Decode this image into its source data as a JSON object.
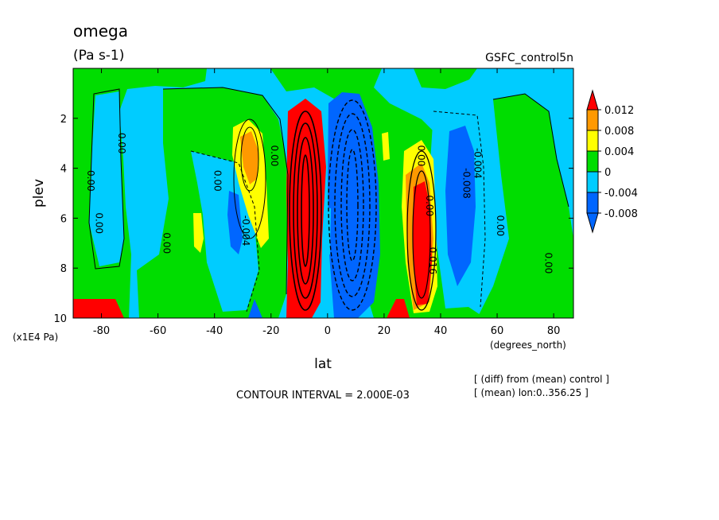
{
  "chart_data": {
    "type": "heatmap",
    "title": "omega",
    "units": "(Pa s-1)",
    "run_label": "GSFC_control5n",
    "xlabel": "lat",
    "x_units": "(degrees_north)",
    "ylabel": "plev",
    "y_units": "(x1E4 Pa)",
    "xlim": [
      -90,
      87
    ],
    "ylim": [
      10,
      0
    ],
    "x_ticks": [
      -80,
      -60,
      -40,
      -20,
      0,
      20,
      40,
      60,
      80
    ],
    "y_ticks": [
      2,
      4,
      6,
      8,
      10
    ],
    "x_tick_labels": [
      "-80",
      "-60",
      "-40",
      "-20",
      "0",
      "20",
      "40",
      "60",
      "80"
    ],
    "y_tick_labels": [
      "2",
      "4",
      "6",
      "8",
      "10"
    ],
    "contour_interval_text": "CONTOUR INTERVAL = 2.000E-03",
    "contour_interval": 0.002,
    "notes": [
      "[ (diff) from (mean) control ]",
      "[ (mean) lon:0..356.25 ]"
    ],
    "colorbar": {
      "levels": [
        {
          "label": "0.012",
          "color": "#ff0000"
        },
        {
          "label": "0.008",
          "color": "#ff9900"
        },
        {
          "label": "0.004",
          "color": "#ffff00"
        },
        {
          "label": "0",
          "color": "#00dd00"
        },
        {
          "label": "-0.004",
          "color": "#00ccff"
        },
        {
          "label": "-0.008",
          "color": "#0066ff"
        }
      ],
      "colors": [
        "#ff0000",
        "#ff9900",
        "#ffff00",
        "#00dd00",
        "#00ccff",
        "#0066ff"
      ]
    },
    "contour_labels": [
      {
        "text": "0.00",
        "x": -85,
        "y": 4.5
      },
      {
        "text": "0.00",
        "x": -82,
        "y": 6.2
      },
      {
        "text": "0.00",
        "x": -74,
        "y": 3.0
      },
      {
        "text": "0.00",
        "x": -58,
        "y": 7.0
      },
      {
        "text": "0.00",
        "x": -40,
        "y": 4.5
      },
      {
        "text": "-0.004",
        "x": -30,
        "y": 6.5
      },
      {
        "text": "0.00",
        "x": -20,
        "y": 3.5
      },
      {
        "text": "0.00",
        "x": 32,
        "y": 3.5
      },
      {
        "text": "0.00",
        "x": 35,
        "y": 5.5
      },
      {
        "text": "0.016",
        "x": 36,
        "y": 7.7
      },
      {
        "text": "-0.004",
        "x": 52,
        "y": 3.8
      },
      {
        "text": "-0.008",
        "x": 48,
        "y": 4.6
      },
      {
        "text": "0.00",
        "x": 60,
        "y": 6.3
      },
      {
        "text": "0.00",
        "x": 77,
        "y": 7.8
      }
    ]
  }
}
